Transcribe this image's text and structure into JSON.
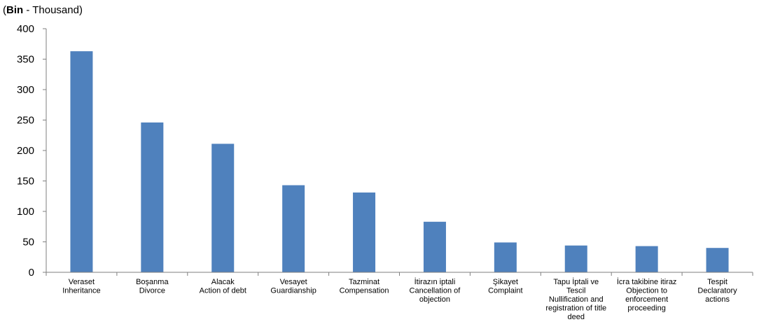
{
  "chart_data": {
    "type": "bar",
    "unit_label": {
      "open": "(",
      "bold": "Bin",
      "rest": " - Thousand)"
    },
    "ylim": [
      0,
      400
    ],
    "yticks": [
      0,
      50,
      100,
      150,
      200,
      250,
      300,
      350,
      400
    ],
    "grid": false,
    "bar_color": "#4f81bd",
    "categories": [
      [
        "Veraset",
        "Inheritance"
      ],
      [
        "Boşanma",
        "Divorce"
      ],
      [
        "Alacak",
        "Action of debt"
      ],
      [
        "Vesayet",
        "Guardianship"
      ],
      [
        "Tazminat",
        "Compensation"
      ],
      [
        "İtirazın iptali",
        "Cancellation of",
        "objection"
      ],
      [
        "Şikayet",
        "Complaint"
      ],
      [
        "Tapu İptali ve",
        "Tescil",
        "Nullification and",
        "registration of title",
        "deed"
      ],
      [
        "İcra takibine itiraz",
        "Objection to",
        "enforcement",
        "proceeding"
      ],
      [
        "Tespit",
        "Declaratory",
        "actions"
      ]
    ],
    "values": [
      363,
      246,
      211,
      143,
      131,
      83,
      49,
      44,
      43,
      40
    ]
  }
}
